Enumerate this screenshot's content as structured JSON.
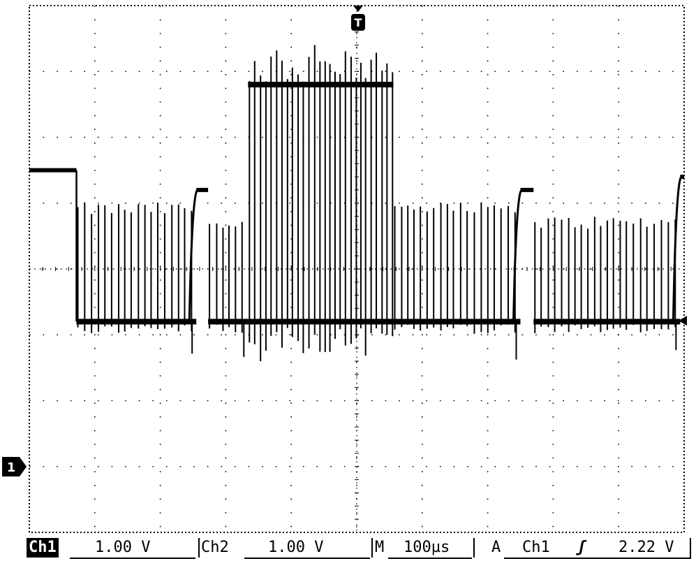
{
  "chart_data": {
    "type": "line",
    "title": "",
    "xlabel": "",
    "ylabel": "",
    "grid": true,
    "grid_divisions": {
      "x": 10,
      "y": 8
    },
    "xlim": [
      -500,
      500
    ],
    "ylim": [
      -1,
      7
    ],
    "x_unit": "µs",
    "y_unit": "V",
    "channel_marker": "1",
    "trigger_marker": "T",
    "series": [
      {
        "name": "Ch1",
        "segments": [
          {
            "start": -500,
            "end": -428,
            "mode": "level",
            "level": 4.5
          },
          {
            "start": -428,
            "end": -245,
            "mode": "pulses",
            "low": 2.2,
            "high": 3.8,
            "dip": 2.1
          },
          {
            "start": -245,
            "end": -227,
            "mode": "level",
            "level": 4.2
          },
          {
            "start": -227,
            "end": -166,
            "mode": "pulses",
            "low": 2.2,
            "high": 3.6,
            "dip": 2.1
          },
          {
            "start": -166,
            "end": 56,
            "mode": "burst",
            "low": 2.2,
            "high": 5.8,
            "dip": 1.5,
            "spike": 6.4
          },
          {
            "start": 56,
            "end": 250,
            "mode": "pulses",
            "low": 2.2,
            "high": 3.8,
            "dip": 2.1
          },
          {
            "start": 250,
            "end": 270,
            "mode": "level",
            "level": 4.2
          },
          {
            "start": 270,
            "end": 494,
            "mode": "pulses",
            "low": 2.2,
            "high": 3.6,
            "dip": 2.1
          },
          {
            "start": 494,
            "end": 500,
            "mode": "level",
            "level": 4.4
          }
        ]
      }
    ]
  },
  "status": {
    "ch1_label": "Ch1",
    "ch1_scale": "1.00 V",
    "ch2_label": "Ch2",
    "ch2_scale": "1.00 V",
    "timebase_label": "M",
    "timebase_value": "100µs",
    "trigger_label": "A",
    "trigger_source": "Ch1",
    "trigger_slope": "ʃ",
    "trigger_level": "2.22 V"
  }
}
